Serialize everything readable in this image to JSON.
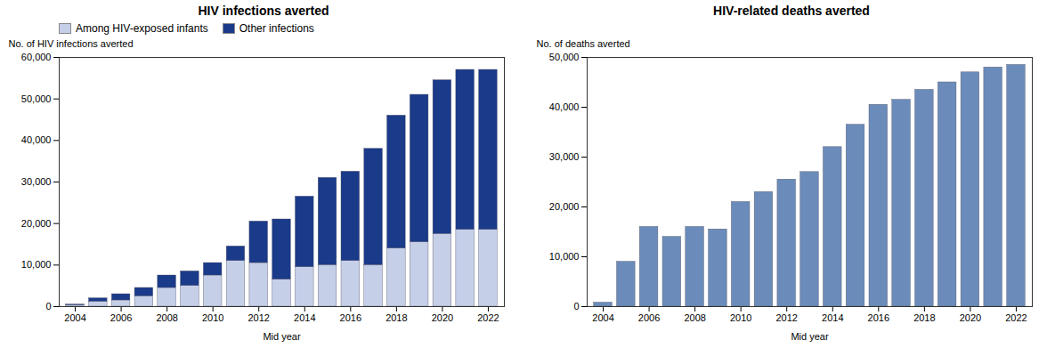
{
  "chart_data": [
    {
      "type": "bar",
      "title": "HIV infections averted",
      "xlabel": "Mid year",
      "ylabel": "No. of HIV infections averted",
      "stacked": true,
      "x": [
        2004,
        2005,
        2006,
        2007,
        2008,
        2009,
        2010,
        2011,
        2012,
        2013,
        2014,
        2015,
        2016,
        2017,
        2018,
        2019,
        2020,
        2021,
        2022
      ],
      "series": [
        {
          "name": "Among HIV-exposed infants",
          "color": "#c5cfe8",
          "values": [
            300,
            1200,
            1500,
            2500,
            4500,
            5000,
            7500,
            11000,
            10500,
            6500,
            9500,
            10000,
            11000,
            10000,
            14000,
            15500,
            17500,
            18500,
            18500
          ]
        },
        {
          "name": "Other infections",
          "color": "#1a3a8a",
          "values": [
            200,
            800,
            1500,
            2000,
            3000,
            3500,
            3000,
            3500,
            10000,
            14500,
            17000,
            21000,
            21500,
            28000,
            32000,
            35500,
            37000,
            38500,
            38500
          ]
        }
      ],
      "xlim": [
        2003.3,
        2022.7
      ],
      "xticks": [
        2004,
        2006,
        2008,
        2010,
        2012,
        2014,
        2016,
        2018,
        2020,
        2022
      ],
      "ylim": [
        0,
        60000
      ],
      "yticks": [
        0,
        {
          "value": 10000,
          "label": "10,000"
        },
        {
          "value": 20000,
          "label": "20,000"
        },
        {
          "value": 30000,
          "label": "30,000"
        },
        {
          "value": 40000,
          "label": "40,000"
        },
        {
          "value": 50000,
          "label": "50,000"
        },
        {
          "value": 60000,
          "label": "60,000"
        }
      ],
      "legend": "upper left",
      "grid": false
    },
    {
      "type": "bar",
      "title": "HIV-related deaths averted",
      "xlabel": "Mid year",
      "ylabel": "No. of deaths averted",
      "x": [
        2004,
        2005,
        2006,
        2007,
        2008,
        2009,
        2010,
        2011,
        2012,
        2013,
        2014,
        2015,
        2016,
        2017,
        2018,
        2019,
        2020,
        2021,
        2022
      ],
      "values": [
        800,
        9000,
        16000,
        14000,
        16000,
        15500,
        21000,
        23000,
        25500,
        27000,
        32000,
        36500,
        40500,
        41500,
        43500,
        45000,
        47000,
        48000,
        48500
      ],
      "color": "#6b8cba",
      "xlim": [
        2003.3,
        2022.7
      ],
      "xticks": [
        2004,
        2006,
        2008,
        2010,
        2012,
        2014,
        2016,
        2018,
        2020,
        2022
      ],
      "ylim": [
        0,
        50000
      ],
      "yticks": [
        0,
        {
          "value": 10000,
          "label": "10,000"
        },
        {
          "value": 20000,
          "label": "20,000"
        },
        {
          "value": 30000,
          "label": "30,000"
        },
        {
          "value": 40000,
          "label": "40,000"
        },
        {
          "value": 50000,
          "label": "50,000"
        }
      ],
      "grid": false
    }
  ]
}
